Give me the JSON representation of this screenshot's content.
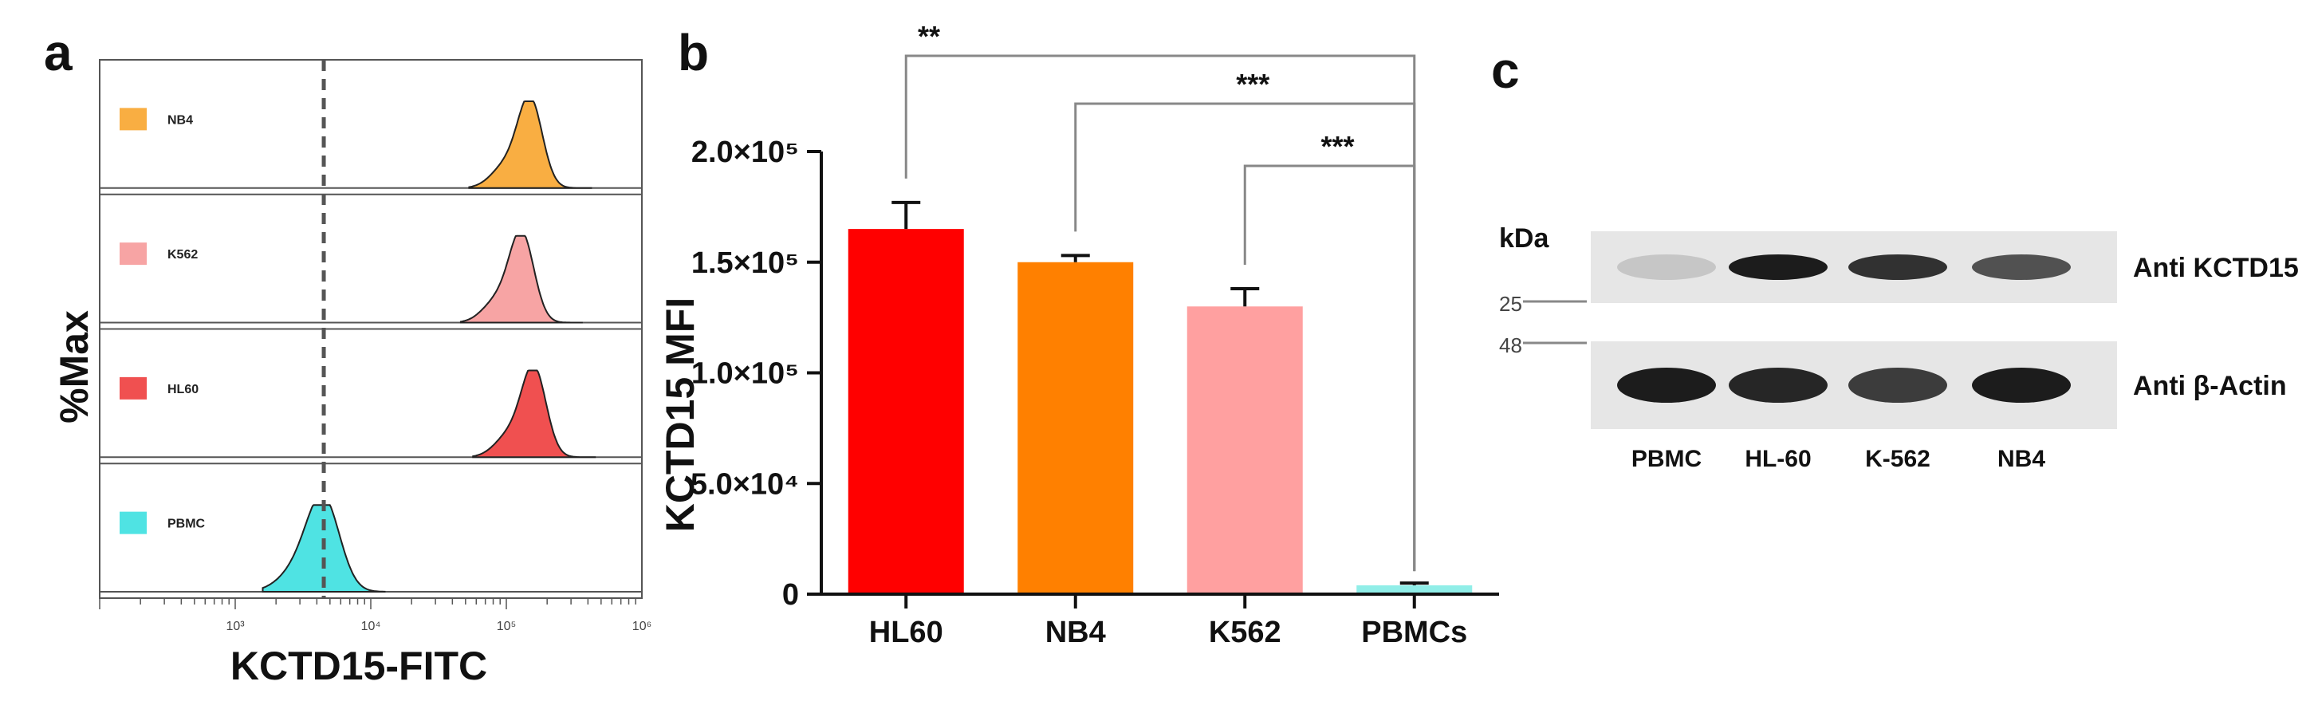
{
  "panel_a": {
    "letter": "a",
    "ylabel": "%Max",
    "xlabel": "KCTD15-FITC",
    "x_ticks": [
      {
        "value": 1000,
        "label": "10³"
      },
      {
        "value": 10000,
        "label": "10⁴"
      },
      {
        "value": 100000,
        "label": "10⁵"
      },
      {
        "value": 1000000,
        "label": "10⁶"
      }
    ],
    "dashed_line_at": 4500
  },
  "panel_b": {
    "letter": "b",
    "ylabel": "KCTD15 MFI",
    "y_ticks": [
      {
        "value": 0,
        "label": "0"
      },
      {
        "value": 50000,
        "label": "5.0×10⁴"
      },
      {
        "value": 100000,
        "label": "1.0×10⁵"
      },
      {
        "value": 150000,
        "label": "1.5×10⁵"
      },
      {
        "value": 200000,
        "label": "2.0×10⁵"
      }
    ],
    "significance": [
      {
        "from": "HL60",
        "to": "PBMCs",
        "label": "**"
      },
      {
        "from": "NB4",
        "to": "PBMCs",
        "label": "***"
      },
      {
        "from": "K562",
        "to": "PBMCs",
        "label": "***"
      }
    ]
  },
  "panel_c": {
    "letter": "c",
    "kda_label": "kDa",
    "markers": [
      {
        "label": "25"
      },
      {
        "label": "48"
      }
    ],
    "blots": [
      {
        "label": "Anti KCTD15",
        "intensities": [
          0.15,
          0.95,
          0.85,
          0.7
        ]
      },
      {
        "label": "Anti β-Actin",
        "intensities": [
          0.95,
          0.9,
          0.8,
          0.95
        ]
      }
    ],
    "lanes": [
      "PBMC",
      "HL-60",
      "K-562",
      "NB4"
    ]
  },
  "chart_data": [
    {
      "type": "area",
      "subtype": "flow-cytometry-histogram",
      "xlabel": "KCTD15-FITC",
      "ylabel": "%Max",
      "xscale": "log",
      "xlim": [
        100,
        1000000
      ],
      "series": [
        {
          "name": "NB4",
          "color": "#F9AE42",
          "peak_x": 150000
        },
        {
          "name": "K562",
          "color": "#F7A4A4",
          "peak_x": 130000
        },
        {
          "name": "HL60",
          "color": "#F05050",
          "peak_x": 160000
        },
        {
          "name": "PBMC",
          "color": "#4FE3E3",
          "peak_x": 4500
        }
      ]
    },
    {
      "type": "bar",
      "categories": [
        "HL60",
        "NB4",
        "K562",
        "PBMCs"
      ],
      "values": [
        165000,
        150000,
        130000,
        4000
      ],
      "errors": [
        12000,
        3000,
        8000,
        1000
      ],
      "colors": [
        "#FF0000",
        "#FF8000",
        "#FFA0A0",
        "#90EEE8"
      ],
      "ylabel": "KCTD15 MFI",
      "ylim": [
        0,
        200000
      ]
    }
  ]
}
